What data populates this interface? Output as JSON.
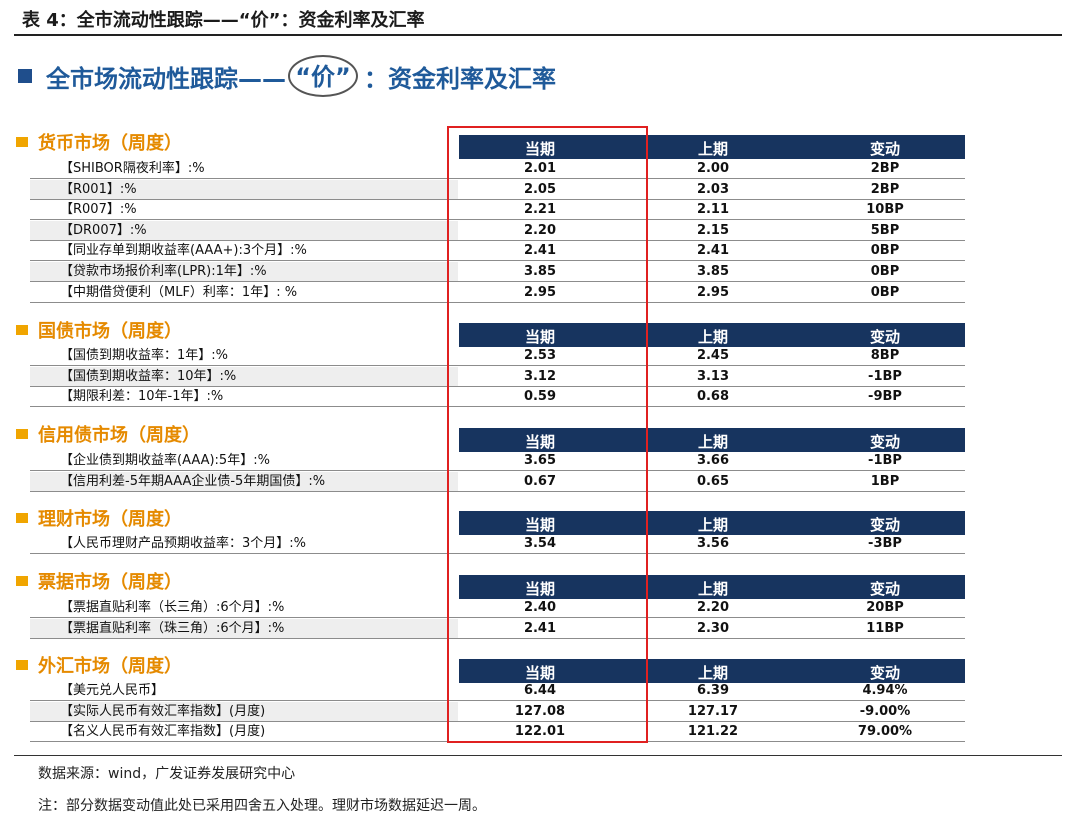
{
  "caption": "表 4：全市流动性跟踪——“价”：资金利率及汇率",
  "subtitle": {
    "prefix": "全市场流动性跟踪——",
    "highlight": "“价”",
    "suffix": "：资金利率及汇率"
  },
  "columns": {
    "current": "当期",
    "previous": "上期",
    "change": "变动"
  },
  "sections": [
    {
      "title": "货币市场（周度）",
      "rows": [
        {
          "label": "【SHIBOR隔夜利率】:%",
          "current": "2.01",
          "previous": "2.00",
          "change": "2BP"
        },
        {
          "label": "【R001】:%",
          "current": "2.05",
          "previous": "2.03",
          "change": "2BP"
        },
        {
          "label": "【R007】:%",
          "current": "2.21",
          "previous": "2.11",
          "change": "10BP"
        },
        {
          "label": "【DR007】:%",
          "current": "2.20",
          "previous": "2.15",
          "change": "5BP"
        },
        {
          "label": "【同业存单到期收益率(AAA+):3个月】:%",
          "current": "2.41",
          "previous": "2.41",
          "change": "0BP"
        },
        {
          "label": "【贷款市场报价利率(LPR):1年】:%",
          "current": "3.85",
          "previous": "3.85",
          "change": "0BP"
        },
        {
          "label": "【中期借贷便利（MLF）利率：1年】: %",
          "current": "2.95",
          "previous": "2.95",
          "change": "0BP"
        }
      ]
    },
    {
      "title": "国债市场（周度）",
      "rows": [
        {
          "label": "【国债到期收益率：1年】:%",
          "current": "2.53",
          "previous": "2.45",
          "change": "8BP"
        },
        {
          "label": "【国债到期收益率：10年】:%",
          "current": "3.12",
          "previous": "3.13",
          "change": "-1BP"
        },
        {
          "label": "【期限利差：10年-1年】:%",
          "current": "0.59",
          "previous": "0.68",
          "change": "-9BP"
        }
      ]
    },
    {
      "title": "信用债市场（周度）",
      "rows": [
        {
          "label": "【企业债到期收益率(AAA):5年】:%",
          "current": "3.65",
          "previous": "3.66",
          "change": "-1BP"
        },
        {
          "label": "【信用利差-5年期AAA企业债-5年期国债】:%",
          "current": "0.67",
          "previous": "0.65",
          "change": "1BP"
        }
      ]
    },
    {
      "title": "理财市场（周度）",
      "rows": [
        {
          "label": "【人民币理财产品预期收益率：3个月】:%",
          "current": "3.54",
          "previous": "3.56",
          "change": "-3BP"
        }
      ]
    },
    {
      "title": "票据市场（周度）",
      "rows": [
        {
          "label": "【票据直贴利率（长三角）:6个月】:%",
          "current": "2.40",
          "previous": "2.20",
          "change": "20BP"
        },
        {
          "label": "【票据直贴利率（珠三角）:6个月】:%",
          "current": "2.41",
          "previous": "2.30",
          "change": "11BP"
        }
      ]
    },
    {
      "title": "外汇市场（周度）",
      "rows": [
        {
          "label": "【美元兑人民币】",
          "current": "6.44",
          "previous": "6.39",
          "change": "4.94%"
        },
        {
          "label": "【实际人民币有效汇率指数】(月度)",
          "current": "127.08",
          "previous": "127.17",
          "change": "-9.00%"
        },
        {
          "label": "【名义人民币有效汇率指数】(月度)",
          "current": "122.01",
          "previous": "121.22",
          "change": "79.00%"
        }
      ]
    }
  ],
  "source": "数据来源：wind，广发证券发展研究中心",
  "note": "注：部分数据变动值此处已采用四舍五入处理。理财市场数据延迟一周。",
  "colors": {
    "header_bg": "#17345f",
    "section_title": "#e58a00",
    "highlight_box": "#e02020",
    "subtitle": "#1f5a9a"
  }
}
